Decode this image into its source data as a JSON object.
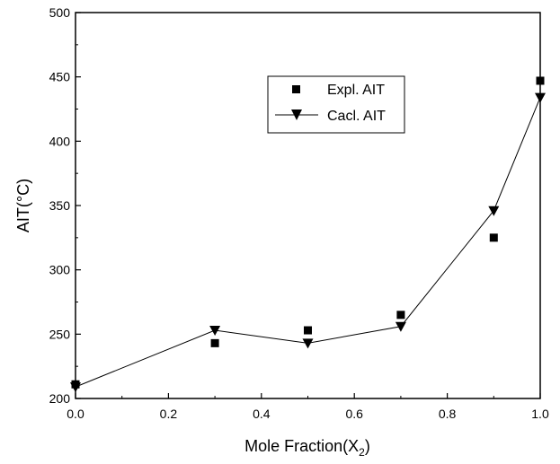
{
  "chart_data": {
    "type": "scatter",
    "title": "",
    "xlabel": "Mole Fraction(X",
    "xlabel_sub": "2",
    "xlabel_close": ")",
    "ylabel": "AIT(°C)",
    "xlim": [
      0.0,
      1.0
    ],
    "ylim": [
      200,
      500
    ],
    "x_ticks": [
      "0.0",
      "0.2",
      "0.4",
      "0.6",
      "0.8",
      "1.0"
    ],
    "y_ticks": [
      "200",
      "250",
      "300",
      "350",
      "400",
      "450",
      "500"
    ],
    "grid": false,
    "legend_position": "top-right",
    "series": [
      {
        "name": "Expl. AIT",
        "marker": "square",
        "line": false,
        "x": [
          0.0,
          0.3,
          0.5,
          0.7,
          0.9,
          1.0
        ],
        "y": [
          211,
          243,
          253,
          265,
          325,
          447
        ]
      },
      {
        "name": "Cacl. AIT",
        "marker": "triangle-down",
        "line": true,
        "x": [
          0.0,
          0.3,
          0.5,
          0.7,
          0.9,
          1.0
        ],
        "y": [
          209,
          253,
          243,
          256,
          346,
          434
        ]
      }
    ]
  }
}
